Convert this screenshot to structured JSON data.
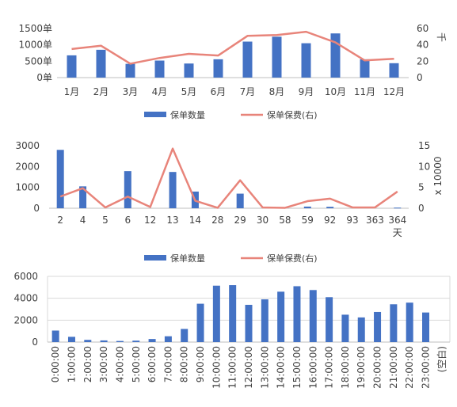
{
  "colors": {
    "bar": "#4472c4",
    "line": "#e8847a",
    "grid": "#d9d9d9",
    "axis": "#bfbfbf",
    "text": "#404040"
  },
  "chart_data": [
    {
      "type": "bar",
      "categories": [
        "1月",
        "2月",
        "3月",
        "4月",
        "5月",
        "6月",
        "7月",
        "8月",
        "9月",
        "10月",
        "11月",
        "12月"
      ],
      "series": [
        {
          "name": "保单数量",
          "type": "bar",
          "axis": "left",
          "values": [
            680,
            850,
            420,
            520,
            430,
            560,
            1100,
            1250,
            1050,
            1350,
            560,
            440
          ]
        },
        {
          "name": "保单保费(右)",
          "type": "line",
          "axis": "right",
          "values": [
            35,
            39,
            17,
            24,
            29,
            27,
            51,
            52,
            56,
            43,
            21,
            23
          ]
        }
      ],
      "y_left": {
        "ticks": [
          "0单",
          "500单",
          "1000单",
          "1500单"
        ],
        "ylim": [
          0,
          1500
        ]
      },
      "y_right": {
        "ticks": [
          "0",
          "20",
          "40",
          "60"
        ],
        "unit": "千",
        "ylim": [
          0,
          60
        ]
      },
      "legend_position": "bottom"
    },
    {
      "type": "bar",
      "categories": [
        "2",
        "4",
        "5",
        "6",
        "12",
        "13",
        "14",
        "28",
        "29",
        "30",
        "58",
        "59",
        "92",
        "93",
        "363",
        "364"
      ],
      "category_suffix": "天",
      "series": [
        {
          "name": "保单数量",
          "type": "bar",
          "axis": "left",
          "values": [
            2800,
            1050,
            0,
            1780,
            0,
            1740,
            800,
            0,
            700,
            0,
            0,
            80,
            70,
            0,
            0,
            30
          ]
        },
        {
          "name": "保单保费(右)",
          "type": "line",
          "axis": "right",
          "values": [
            2.8,
            4.8,
            0.2,
            2.8,
            0.3,
            14.3,
            1.8,
            0.1,
            6.7,
            0.2,
            0.1,
            1.7,
            2.3,
            0.2,
            0.2,
            4.0
          ]
        }
      ],
      "y_left": {
        "ticks": [
          "0",
          "1000",
          "2000",
          "3000"
        ],
        "ylim": [
          0,
          3000
        ]
      },
      "y_right": {
        "ticks": [
          "0",
          "5",
          "10",
          "15"
        ],
        "unit": "x 10000",
        "ylim": [
          0,
          15
        ]
      },
      "legend_position": "bottom"
    },
    {
      "type": "bar",
      "categories": [
        "0:00:00",
        "1:00:00",
        "2:00:00",
        "3:00:00",
        "4:00:00",
        "5:00:00",
        "6:00:00",
        "7:00:00",
        "8:00:00",
        "9:00:00",
        "10:00:00",
        "11:00:00",
        "12:00:00",
        "13:00:00",
        "14:00:00",
        "15:00:00",
        "16:00:00",
        "17:00:00",
        "18:00:00",
        "19:00:00",
        "20:00:00",
        "21:00:00",
        "22:00:00",
        "23:00:00",
        "(空白)"
      ],
      "values": [
        1050,
        480,
        200,
        150,
        100,
        130,
        280,
        530,
        1200,
        3500,
        5150,
        5200,
        3400,
        3900,
        4600,
        5100,
        4750,
        4100,
        2500,
        2250,
        2750,
        3450,
        3600,
        2700,
        0
      ],
      "y_left": {
        "ticks": [
          "0",
          "2000",
          "4000",
          "6000"
        ],
        "ylim": [
          0,
          6000
        ]
      },
      "grid": true
    }
  ]
}
